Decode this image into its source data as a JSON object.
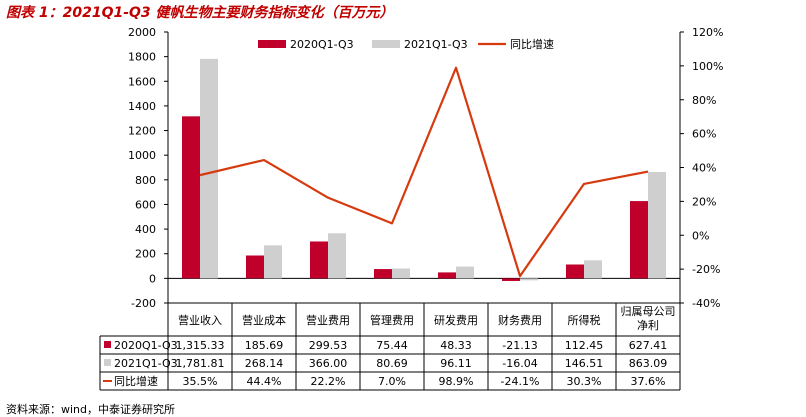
{
  "title": "图表 1：2021Q1-Q3 健帆生物主要财务指标变化（百万元）",
  "source": "资料来源：wind，中泰证券研究所",
  "colors": {
    "s1": "#c0002b",
    "s2": "#cfcfcf",
    "line": "#d63a0e",
    "title": "#c00000"
  },
  "chart_data": {
    "type": "bar+line+table",
    "title": "",
    "categories": [
      "营业收入",
      "营业成本",
      "营业费用",
      "管理费用",
      "研发费用",
      "财务费用",
      "所得税",
      "归属母公司净利"
    ],
    "category_lines": [
      [
        "营业收入"
      ],
      [
        "营业成本"
      ],
      [
        "营业费用"
      ],
      [
        "管理费用"
      ],
      [
        "研发费用"
      ],
      [
        "财务费用"
      ],
      [
        "所得税"
      ],
      [
        "归属母公司",
        "净利"
      ]
    ],
    "series": [
      {
        "name": "2020Q1-Q3",
        "type": "bar",
        "axis": "left",
        "values": [
          1315.33,
          185.69,
          299.53,
          75.44,
          48.33,
          -21.13,
          112.45,
          627.41
        ],
        "labels": [
          "1,315.33",
          "185.69",
          "299.53",
          "75.44",
          "48.33",
          "-21.13",
          "112.45",
          "627.41"
        ]
      },
      {
        "name": "2021Q1-Q3",
        "type": "bar",
        "axis": "left",
        "values": [
          1781.81,
          268.14,
          366.0,
          80.69,
          96.11,
          -16.04,
          146.51,
          863.09
        ],
        "labels": [
          "1,781.81",
          "268.14",
          "366.00",
          "80.69",
          "96.11",
          "-16.04",
          "146.51",
          "863.09"
        ]
      },
      {
        "name": "同比增速",
        "type": "line",
        "axis": "right",
        "values": [
          35.5,
          44.4,
          22.2,
          7.0,
          98.9,
          -24.1,
          30.3,
          37.6
        ],
        "labels": [
          "35.5%",
          "44.4%",
          "22.2%",
          "7.0%",
          "98.9%",
          "-24.1%",
          "30.3%",
          "37.6%"
        ]
      }
    ],
    "y_left": {
      "min": -200,
      "max": 2000,
      "ticks": [
        -200,
        0,
        200,
        400,
        600,
        800,
        1000,
        1200,
        1400,
        1600,
        1800,
        2000
      ]
    },
    "y_right": {
      "min": -40,
      "max": 120,
      "ticks": [
        "-40%",
        "-20%",
        "0%",
        "20%",
        "40%",
        "60%",
        "80%",
        "100%",
        "120%"
      ]
    },
    "legend_position": "top",
    "grid": false
  }
}
